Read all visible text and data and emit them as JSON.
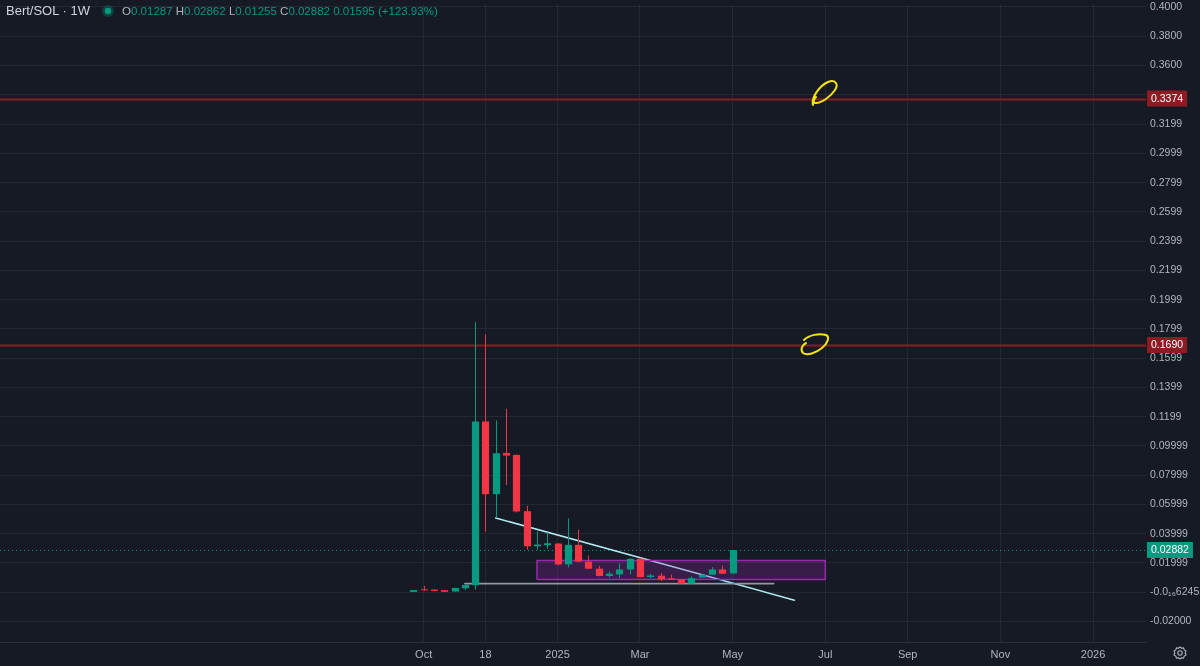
{
  "chart_data": {
    "type": "candlestick",
    "title": "Bert/SOL · 1W",
    "subtitle": "O0.01287 H0.02862 L0.01255 C0.02882 0.01595 (+123.93%)",
    "x": [
      "2024-09-30",
      "2024-10-07",
      "2024-10-14",
      "2024-10-21",
      "2024-10-28",
      "2024-11-04",
      "2024-11-11",
      "2024-11-18",
      "2024-11-25",
      "2024-12-02",
      "2024-12-09",
      "2024-12-16",
      "2024-12-23",
      "2024-12-30",
      "2025-01-06",
      "2025-01-13",
      "2025-01-20",
      "2025-01-27",
      "2025-02-03",
      "2025-02-10",
      "2025-02-17",
      "2025-02-24",
      "2025-03-03",
      "2025-03-10",
      "2025-03-17",
      "2025-03-24",
      "2025-03-31",
      "2025-04-07",
      "2025-04-14",
      "2025-04-21",
      "2025-04-28",
      "2025-05-05"
    ],
    "ohlc": [
      [
        0.0002,
        0.0015,
        0.0002,
        0.0015
      ],
      [
        0.002,
        0.0043,
        0.0009,
        0.0014
      ],
      [
        0.0018,
        0.002,
        0.0008,
        0.0009
      ],
      [
        0.0014,
        0.0015,
        0.0002,
        0.0003
      ],
      [
        0.0005,
        0.003,
        0.0004,
        0.0029
      ],
      [
        0.0027,
        0.0052,
        0.0014,
        0.005
      ],
      [
        0.0048,
        0.1846,
        0.0018,
        0.1167
      ],
      [
        0.1167,
        0.1762,
        0.0414,
        0.067
      ],
      [
        0.067,
        0.1174,
        0.0507,
        0.095
      ],
      [
        0.0952,
        0.1253,
        0.0733,
        0.0934
      ],
      [
        0.0939,
        0.0941,
        0.0545,
        0.0552
      ],
      [
        0.0554,
        0.059,
        0.029,
        0.0314
      ],
      [
        0.0314,
        0.0416,
        0.029,
        0.0326
      ],
      [
        0.0321,
        0.041,
        0.0296,
        0.0335
      ],
      [
        0.0333,
        0.0335,
        0.0185,
        0.019
      ],
      [
        0.019,
        0.0505,
        0.017,
        0.0324
      ],
      [
        0.0324,
        0.0428,
        0.0206,
        0.021
      ],
      [
        0.021,
        0.0251,
        0.0159,
        0.0161
      ],
      [
        0.0161,
        0.0181,
        0.0109,
        0.0111
      ],
      [
        0.0111,
        0.0143,
        0.0102,
        0.0127
      ],
      [
        0.0122,
        0.0197,
        0.0097,
        0.0156
      ],
      [
        0.0156,
        0.0231,
        0.0122,
        0.0229
      ],
      [
        0.0229,
        0.0233,
        0.0102,
        0.0104
      ],
      [
        0.0104,
        0.0127,
        0.0097,
        0.0115
      ],
      [
        0.0113,
        0.0131,
        0.0077,
        0.009
      ],
      [
        0.0095,
        0.012,
        0.0084,
        0.0086
      ],
      [
        0.0088,
        0.009,
        0.0057,
        0.0059
      ],
      [
        0.0059,
        0.0109,
        0.0057,
        0.0097
      ],
      [
        0.01,
        0.0122,
        0.0099,
        0.012
      ],
      [
        0.012,
        0.0172,
        0.0118,
        0.0156
      ],
      [
        0.0156,
        0.0181,
        0.0125,
        0.0127
      ],
      [
        0.01287,
        0.02882,
        0.01255,
        0.02882
      ]
    ],
    "colors": [
      "#089981",
      "#f23645",
      "#f23645",
      "#f23645",
      "#089981",
      "#089981",
      "#089981",
      "#f23645",
      "#089981",
      "#f23645",
      "#f23645",
      "#f23645",
      "#089981",
      "#089981",
      "#f23645",
      "#089981",
      "#f23645",
      "#f23645",
      "#f23645",
      "#089981",
      "#089981",
      "#089981",
      "#f23645",
      "#089981",
      "#f23645",
      "#f23645",
      "#f23645",
      "#089981",
      "#089981",
      "#089981",
      "#f23645",
      "#089981"
    ],
    "series": [
      {
        "type": "area",
        "x": [
          "2024-12-23",
          "2024-12-23",
          "2025-07-07",
          "2025-07-07",
          "2024-12-23"
        ],
        "values": [
          0.0087,
          0.0217,
          0.0217,
          0.0087,
          0.0087
        ],
        "color": "#9c27b0"
      },
      {
        "type": "line",
        "x": [
          "2024-11-04",
          "2025-06-02"
        ],
        "values": [
          0.0059,
          0.0059
        ],
        "color": "#9598a1"
      },
      {
        "type": "line",
        "x": [
          "2024-11-25",
          "2025-06-16"
        ],
        "values": [
          0.0507,
          -0.0054
        ],
        "color": "#b2ebf2"
      }
    ],
    "ref_lines": [
      {
        "axis": "y",
        "value": 0.3374,
        "label": "0.3374",
        "color": "#8c1c23"
      },
      {
        "axis": "y",
        "value": 0.169,
        "label": "0.1690",
        "color": "#8c1c23"
      },
      {
        "axis": "y",
        "value": 0.02882,
        "label": "0.02882",
        "color": "#089981",
        "line_style": "dotted"
      }
    ],
    "xlim": [
      "2023-12-24",
      "2026-02-10"
    ],
    "xticks": [
      {
        "value": "2024-10-07",
        "label": "Oct"
      },
      {
        "value": "2024-11-18",
        "label": "18"
      },
      {
        "value": "2025-01-06",
        "label": "2025"
      },
      {
        "value": "2025-03-03",
        "label": "Mar"
      },
      {
        "value": "2025-05-05",
        "label": "May"
      },
      {
        "value": "2025-07-07",
        "label": "Jul"
      },
      {
        "value": "2025-09-01",
        "label": "Sep"
      },
      {
        "value": "2025-11-03",
        "label": "Nov"
      },
      {
        "value": "2026-01-05",
        "label": "2026"
      }
    ],
    "ylim": [
      -0.034,
      0.402
    ],
    "yticks": [
      {
        "value": 0.4,
        "label": "0.4000"
      },
      {
        "value": 0.38,
        "label": "0.3800"
      },
      {
        "value": 0.36,
        "label": "0.3600"
      },
      {
        "value": 0.34,
        "label": null
      },
      {
        "value": 0.3199,
        "label": "0.3199"
      },
      {
        "value": 0.2999,
        "label": "0.2999"
      },
      {
        "value": 0.2799,
        "label": "0.2799"
      },
      {
        "value": 0.2599,
        "label": "0.2599"
      },
      {
        "value": 0.2399,
        "label": "0.2399"
      },
      {
        "value": 0.2199,
        "label": "0.2199"
      },
      {
        "value": 0.1999,
        "label": "0.1999"
      },
      {
        "value": 0.1799,
        "label": "0.1799"
      },
      {
        "value": 0.1599,
        "label": "0.1599"
      },
      {
        "value": 0.1399,
        "label": "0.1399"
      },
      {
        "value": 0.1199,
        "label": "0.1199"
      },
      {
        "value": 0.09999,
        "label": "0.09999"
      },
      {
        "value": 0.07999,
        "label": "0.07999"
      },
      {
        "value": 0.05999,
        "label": "0.05999"
      },
      {
        "value": 0.03999,
        "label": "0.03999"
      },
      {
        "value": 0.01999,
        "label": "0.01999"
      },
      {
        "value": 0,
        "label": "-0.0₁₆6245"
      },
      {
        "value": -0.02,
        "label": "-0.02000"
      }
    ],
    "grid": true
  }
}
